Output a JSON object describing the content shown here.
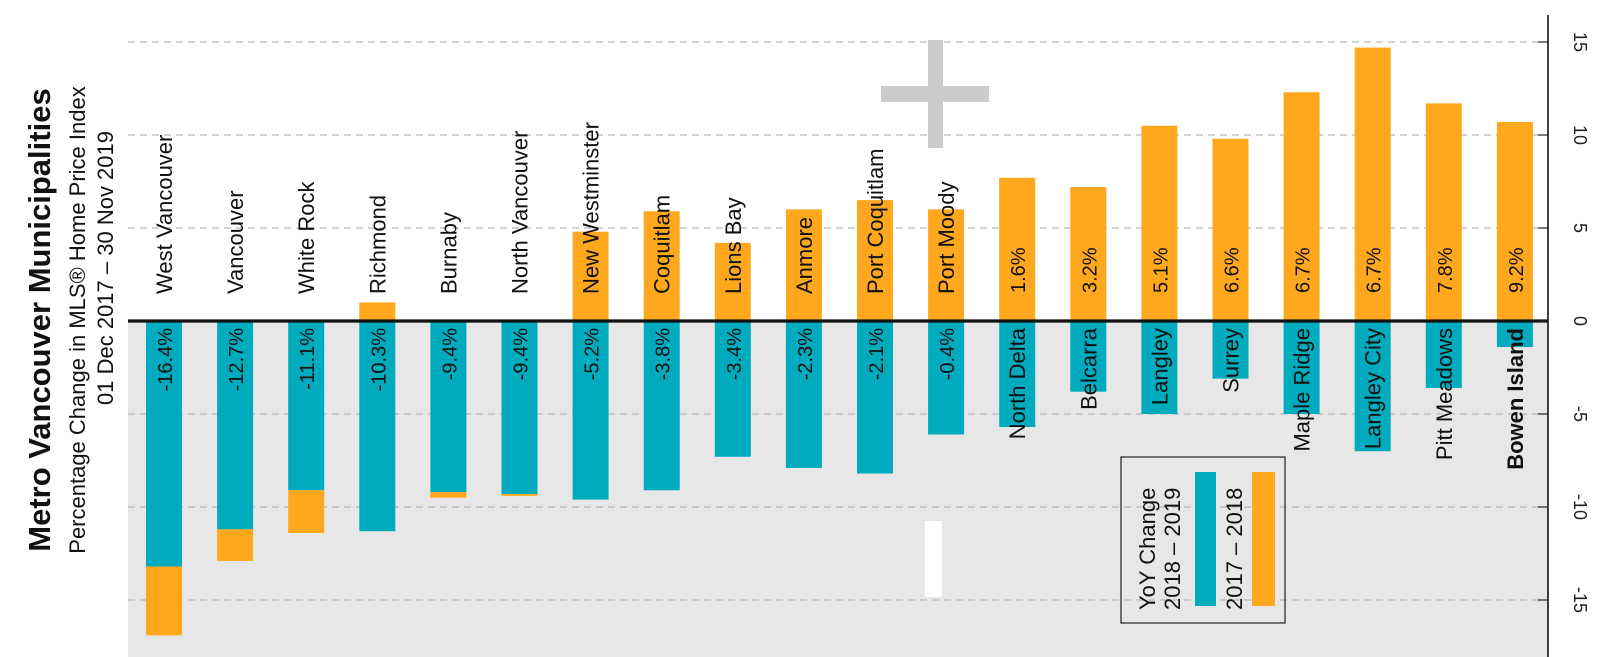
{
  "title": "Metro Vancouver Municipalities",
  "subtitle": "Percentage Change in MLS® Home Price Index",
  "date_range": "01 Dec 2017 – 30 Nov 2019",
  "colors": {
    "series_2018_2019": "#00ABBD",
    "series_2017_2018": "#FFA81E",
    "negative_band": "#E7E7E7",
    "grid": "#B9B9B9",
    "decor": "#CCCCCC"
  },
  "legend": {
    "title": "YoY Change",
    "items": [
      {
        "label": "2018 – 2019",
        "color": "#00ABBD"
      },
      {
        "label": "2017 – 2018",
        "color": "#FFA81E"
      }
    ]
  },
  "chart_data": {
    "type": "bar",
    "stacked": true,
    "orientation": "vertical bars, figure rotated 90°",
    "y_ticks": [
      15,
      10,
      5,
      0,
      -5,
      -10,
      -15
    ],
    "ylim": [
      -17.5,
      16
    ],
    "grid": true,
    "categories": [
      "West Vancouver",
      "Vancouver",
      "White Rock",
      "Richmond",
      "Burnaby",
      "North Vancouver",
      "New Westminster",
      "Coquitlam",
      "Lions Bay",
      "Anmore",
      "Port Coquitlam",
      "Port Moody",
      "North Delta",
      "Belcarra",
      "Langley",
      "Surrey",
      "Maple Ridge",
      "Langley City",
      "Pitt Meadows",
      "Bowen Island"
    ],
    "category_bold": [
      false,
      false,
      false,
      false,
      false,
      false,
      false,
      false,
      false,
      false,
      false,
      false,
      false,
      false,
      false,
      false,
      false,
      false,
      false,
      true
    ],
    "total_change_labels": [
      "-16.4%",
      "-12.7%",
      "-11.1%",
      "-10.3%",
      "-9.4%",
      "-9.4%",
      "-5.2%",
      "-3.8%",
      "-3.4%",
      "-2.3%",
      "-2.1%",
      "-0.4%",
      "1.6%",
      "3.2%",
      "5.1%",
      "6.6%",
      "6.7%",
      "6.7%",
      "7.8%",
      "9.2%"
    ],
    "series": [
      {
        "name": "2018 – 2019",
        "values": [
          -13.2,
          -11.2,
          -9.1,
          -11.3,
          -9.2,
          -9.3,
          -9.6,
          -9.1,
          -7.3,
          -7.9,
          -8.2,
          -6.1,
          -5.7,
          -3.8,
          -5.0,
          -3.1,
          -5.0,
          -7.0,
          -3.6,
          -1.4
        ]
      },
      {
        "name": "2017 – 2018",
        "values": [
          -3.7,
          -1.7,
          -2.3,
          1.0,
          -0.3,
          -0.1,
          4.8,
          5.9,
          4.2,
          6.0,
          6.5,
          6.0,
          7.7,
          7.2,
          10.5,
          9.8,
          12.3,
          14.7,
          11.7,
          10.7
        ]
      }
    ]
  }
}
